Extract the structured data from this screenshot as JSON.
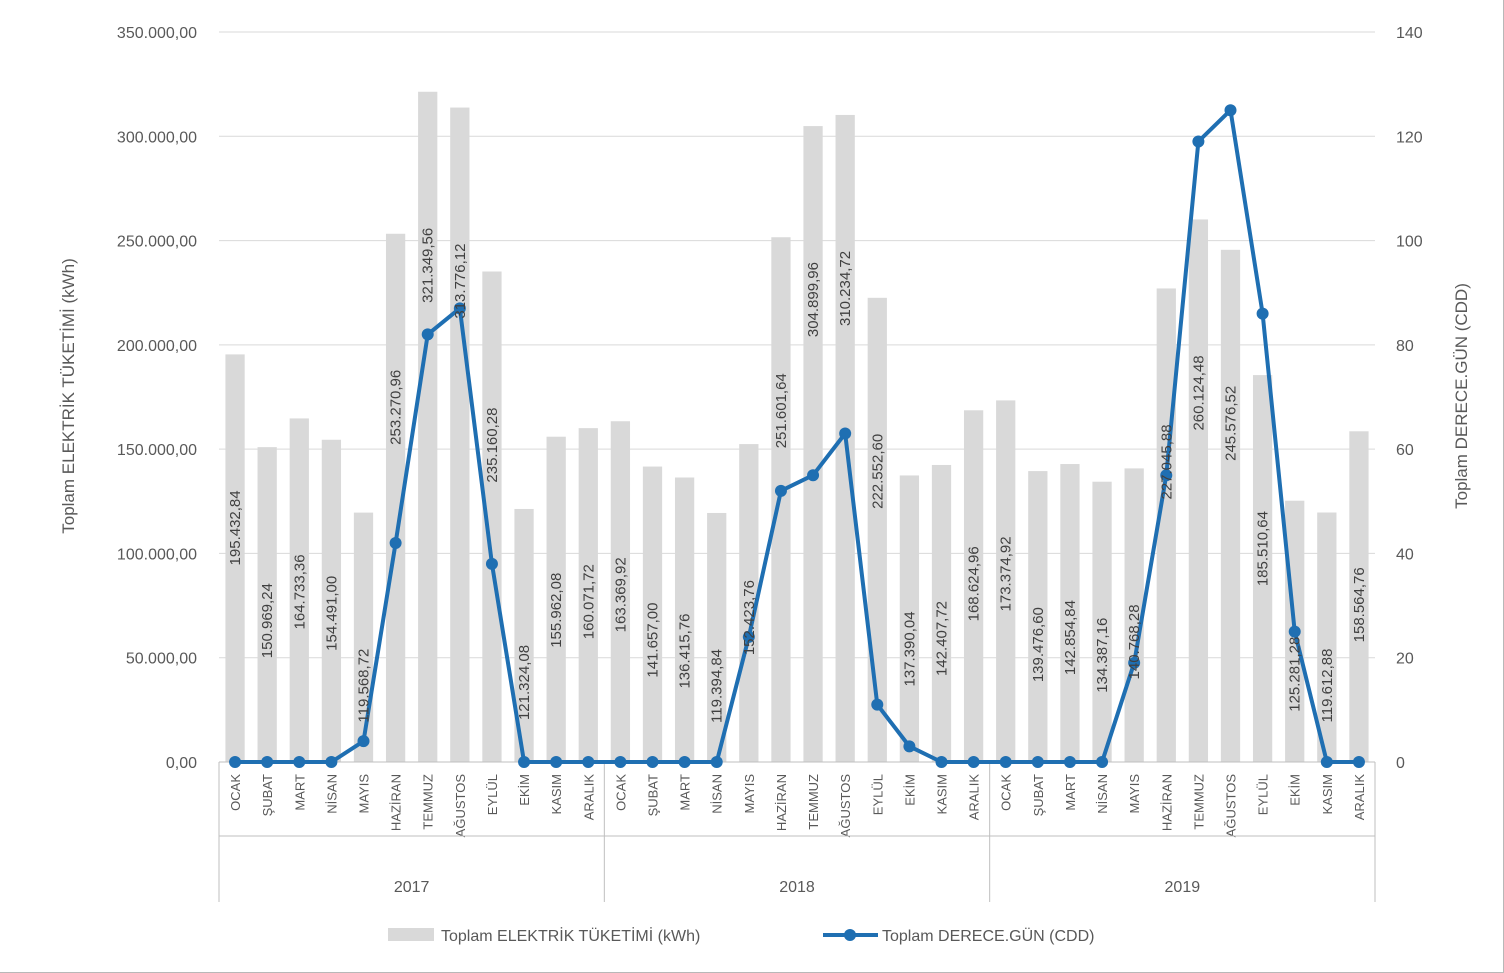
{
  "chart_data": {
    "type": "bar",
    "ylabel": "Toplam ELEKTRİK TÜKETİMİ (kWh)",
    "y2label": "Toplam DERECE.GÜN (CDD)",
    "ylim": [
      0,
      350000
    ],
    "y2lim": [
      0,
      140
    ],
    "yticks": [
      "0,00",
      "50.000,00",
      "100.000,00",
      "150.000,00",
      "200.000,00",
      "250.000,00",
      "300.000,00",
      "350.000,00"
    ],
    "y2ticks": [
      "0",
      "20",
      "40",
      "60",
      "80",
      "100",
      "120",
      "140"
    ],
    "grid": true,
    "legend_position": "bottom",
    "months": [
      "OCAK",
      "ŞUBAT",
      "MART",
      "NİSAN",
      "MAYIS",
      "HAZİRAN",
      "TEMMUZ",
      "AĞUSTOS",
      "EYLÜL",
      "EKİM",
      "KASIM",
      "ARALIK"
    ],
    "years": [
      "2017",
      "2018",
      "2019"
    ],
    "series": [
      {
        "name": "Toplam ELEKTRİK TÜKETİMİ (kWh)",
        "kind": "bar",
        "color": "#d9d9d9",
        "values": [
          195432.84,
          150969.24,
          164733.36,
          154491.0,
          119568.72,
          253270.96,
          321349.56,
          313776.12,
          235160.28,
          121324.08,
          155962.08,
          160071.72,
          163369.92,
          141657.0,
          136415.76,
          119394.84,
          152423.76,
          251601.64,
          304899.96,
          310234.72,
          222552.6,
          137390.04,
          142407.72,
          168624.96,
          173374.92,
          139476.6,
          142854.84,
          134387.16,
          140768.28,
          227045.88,
          260124.48,
          245576.52,
          185510.64,
          125281.28,
          119612.88,
          158564.76
        ],
        "labels": [
          "195.432,84",
          "150.969,24",
          "164.733,36",
          "154.491,00",
          "119.568,72",
          "253.270,96",
          "321.349,56",
          "313.776,12",
          "235.160,28",
          "121.324,08",
          "155.962,08",
          "160.071,72",
          "163.369,92",
          "141.657,00",
          "136.415,76",
          "119.394,84",
          "152.423,76",
          "251.601,64",
          "304.899,96",
          "310.234,72",
          "222.552,60",
          "137.390,04",
          "142.407,72",
          "168.624,96",
          "173.374,92",
          "139.476,60",
          "142.854,84",
          "134.387,16",
          "140.768,28",
          "227.045,88",
          "260.124,48",
          "245.576,52",
          "185.510,64",
          "125.281,28",
          "119.612,88",
          "158.564,76"
        ]
      },
      {
        "name": "Toplam DERECE.GÜN (CDD)",
        "kind": "line",
        "axis": "right",
        "color": "#1f6fb2",
        "values": [
          0,
          0,
          0,
          0,
          4,
          42,
          82,
          87,
          38,
          0,
          0,
          0,
          0,
          0,
          0,
          0,
          24,
          52,
          55,
          63,
          11,
          3,
          0,
          0,
          0,
          0,
          0,
          0,
          19,
          55,
          119,
          125,
          86,
          25,
          0,
          0
        ]
      }
    ]
  }
}
